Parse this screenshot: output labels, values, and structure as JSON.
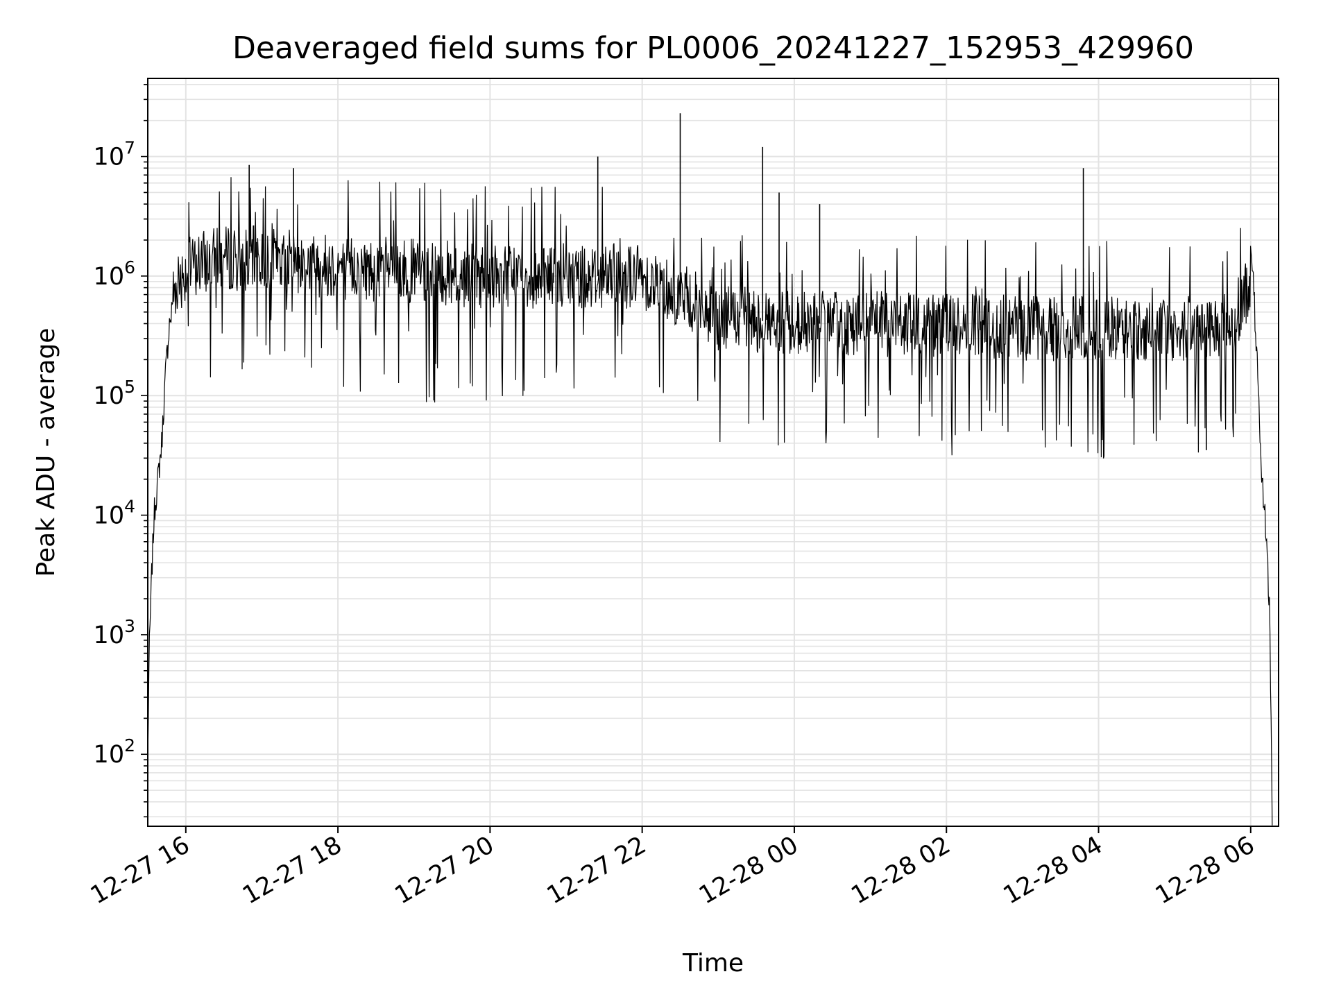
{
  "chart_data": {
    "type": "line",
    "title": "Deaveraged field sums for PL0006_20241227_152953_429960",
    "xlabel": "Time",
    "ylabel": "Peak ADU - average",
    "yscale": "log",
    "xlim": [
      "2024-12-27 15:30",
      "2024-12-28 06:22"
    ],
    "ylim": [
      25,
      45000000
    ],
    "grid": true,
    "x_ticks": [
      {
        "at": "2024-12-27 16:00",
        "label": "12-27 16"
      },
      {
        "at": "2024-12-27 18:00",
        "label": "12-27 18"
      },
      {
        "at": "2024-12-27 20:00",
        "label": "12-27 20"
      },
      {
        "at": "2024-12-27 22:00",
        "label": "12-27 22"
      },
      {
        "at": "2024-12-28 00:00",
        "label": "12-28 00"
      },
      {
        "at": "2024-12-28 02:00",
        "label": "12-28 02"
      },
      {
        "at": "2024-12-28 04:00",
        "label": "12-28 04"
      },
      {
        "at": "2024-12-28 06:00",
        "label": "12-28 06"
      }
    ],
    "y_ticks": [
      {
        "value": 100,
        "base": "10",
        "exp": "2"
      },
      {
        "value": 1000,
        "base": "10",
        "exp": "3"
      },
      {
        "value": 10000,
        "base": "10",
        "exp": "4"
      },
      {
        "value": 100000,
        "base": "10",
        "exp": "5"
      },
      {
        "value": 1000000,
        "base": "10",
        "exp": "6"
      },
      {
        "value": 10000000,
        "base": "10",
        "exp": "7"
      }
    ],
    "series": [
      {
        "color": "#000000",
        "x": [
          "2024-12-27 15:30",
          "2024-12-27 15:31",
          "2024-12-27 15:33",
          "2024-12-27 15:35",
          "2024-12-27 15:38",
          "2024-12-27 15:41",
          "2024-12-27 15:44",
          "2024-12-27 15:47",
          "2024-12-27 15:50",
          "2024-12-27 15:53",
          "2024-12-27 15:56",
          "2024-12-27 16:00",
          "2024-12-27 16:05",
          "2024-12-27 16:15",
          "2024-12-27 16:30",
          "2024-12-27 17:00",
          "2024-12-27 17:30",
          "2024-12-27 18:00",
          "2024-12-27 19:00",
          "2024-12-27 20:00",
          "2024-12-27 21:00",
          "2024-12-27 22:00",
          "2024-12-27 22:30",
          "2024-12-27 23:00",
          "2024-12-28 00:00",
          "2024-12-28 01:00",
          "2024-12-28 02:00",
          "2024-12-28 03:00",
          "2024-12-28 04:00",
          "2024-12-28 05:00",
          "2024-12-28 05:45",
          "2024-12-28 05:58",
          "2024-12-28 06:00",
          "2024-12-28 06:02",
          "2024-12-28 06:05",
          "2024-12-28 06:08",
          "2024-12-28 06:12",
          "2024-12-28 06:15",
          "2024-12-28 06:17"
        ],
        "y": [
          90,
          600,
          3000,
          10000,
          20000,
          40000,
          150000,
          400000,
          700000,
          900000,
          1000000,
          1100000,
          1200000,
          1300000,
          1400000,
          1400000,
          1300000,
          1200000,
          1100000,
          1000000,
          1000000,
          1000000,
          700000,
          450000,
          400000,
          400000,
          380000,
          370000,
          360000,
          350000,
          400000,
          800000,
          1100000,
          900000,
          200000,
          25000,
          8000,
          1500,
          30
        ]
      },
      {
        "name_hidden": "",
        "color": "#000000",
        "x": [
          "2024-12-27 22:30",
          "2024-12-27 23:35",
          "2024-12-27 23:48",
          "2024-12-27 21:25",
          "2024-12-28 03:48",
          "2024-12-27 16:50",
          "2024-12-27 17:25",
          "2024-12-28 00:20",
          "2024-12-28 05:25"
        ],
        "y": [
          23000000,
          12000000,
          5000000,
          10000000,
          8000000,
          8500000,
          8000000,
          4000000,
          35000
        ]
      }
    ]
  }
}
